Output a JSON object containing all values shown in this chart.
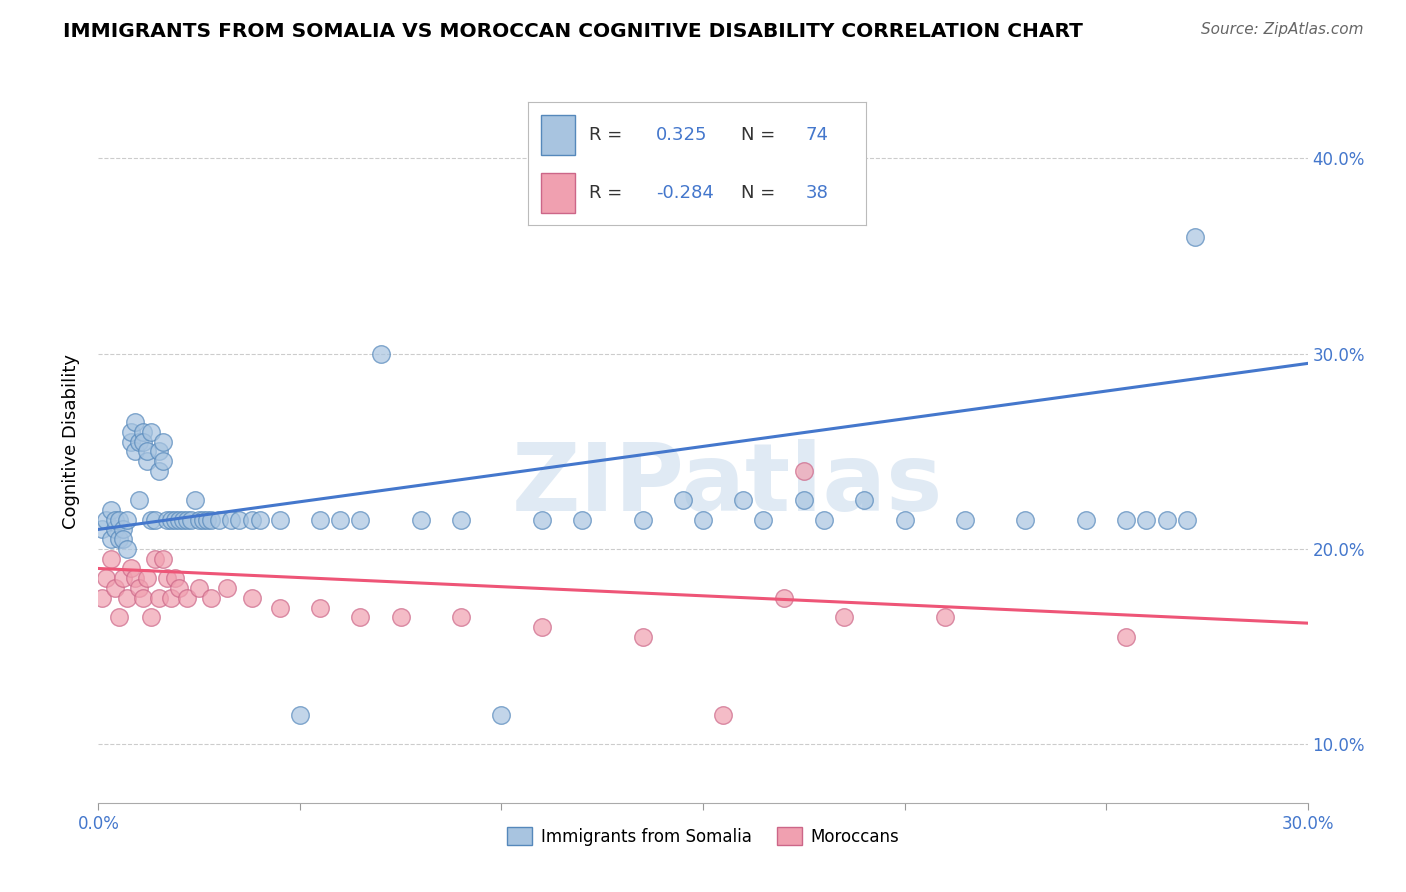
{
  "title": "IMMIGRANTS FROM SOMALIA VS MOROCCAN COGNITIVE DISABILITY CORRELATION CHART",
  "source": "Source: ZipAtlas.com",
  "ylabel": "Cognitive Disability",
  "xlim": [
    0.0,
    0.3
  ],
  "ylim": [
    0.07,
    0.44
  ],
  "xticks": [
    0.0,
    0.05,
    0.1,
    0.15,
    0.2,
    0.25,
    0.3
  ],
  "yticks": [
    0.1,
    0.2,
    0.3,
    0.4
  ],
  "ytick_labels": [
    "10.0%",
    "20.0%",
    "30.0%",
    "40.0%"
  ],
  "xtick_labels_show": [
    "0.0%",
    "30.0%"
  ],
  "blue_R": 0.325,
  "blue_N": 74,
  "pink_R": -0.284,
  "pink_N": 38,
  "blue_scatter_color": "#A8C4E0",
  "blue_edge_color": "#5588BB",
  "pink_scatter_color": "#F0A0B0",
  "pink_edge_color": "#CC6688",
  "blue_line_color": "#4477CC",
  "pink_line_color": "#EE5577",
  "legend_label_blue": "Immigrants from Somalia",
  "legend_label_pink": "Moroccans",
  "watermark": "ZIPatlas",
  "blue_line_start_y": 0.21,
  "blue_line_end_y": 0.295,
  "pink_line_start_y": 0.19,
  "pink_line_end_y": 0.162,
  "blue_x": [
    0.001,
    0.002,
    0.003,
    0.003,
    0.004,
    0.004,
    0.005,
    0.005,
    0.006,
    0.006,
    0.007,
    0.007,
    0.008,
    0.008,
    0.009,
    0.009,
    0.01,
    0.01,
    0.011,
    0.011,
    0.012,
    0.012,
    0.013,
    0.013,
    0.014,
    0.015,
    0.015,
    0.016,
    0.016,
    0.017,
    0.018,
    0.019,
    0.02,
    0.021,
    0.022,
    0.023,
    0.024,
    0.025,
    0.026,
    0.027,
    0.028,
    0.03,
    0.033,
    0.035,
    0.038,
    0.04,
    0.045,
    0.05,
    0.055,
    0.06,
    0.065,
    0.07,
    0.08,
    0.09,
    0.1,
    0.11,
    0.12,
    0.135,
    0.15,
    0.165,
    0.18,
    0.2,
    0.215,
    0.23,
    0.245,
    0.255,
    0.26,
    0.265,
    0.27,
    0.272,
    0.145,
    0.16,
    0.175,
    0.19
  ],
  "blue_y": [
    0.21,
    0.215,
    0.205,
    0.22,
    0.21,
    0.215,
    0.205,
    0.215,
    0.21,
    0.205,
    0.215,
    0.2,
    0.255,
    0.26,
    0.265,
    0.25,
    0.255,
    0.225,
    0.26,
    0.255,
    0.245,
    0.25,
    0.26,
    0.215,
    0.215,
    0.25,
    0.24,
    0.255,
    0.245,
    0.215,
    0.215,
    0.215,
    0.215,
    0.215,
    0.215,
    0.215,
    0.225,
    0.215,
    0.215,
    0.215,
    0.215,
    0.215,
    0.215,
    0.215,
    0.215,
    0.215,
    0.215,
    0.115,
    0.215,
    0.215,
    0.215,
    0.3,
    0.215,
    0.215,
    0.115,
    0.215,
    0.215,
    0.215,
    0.215,
    0.215,
    0.215,
    0.215,
    0.215,
    0.215,
    0.215,
    0.215,
    0.215,
    0.215,
    0.215,
    0.36,
    0.225,
    0.225,
    0.225,
    0.225
  ],
  "pink_x": [
    0.001,
    0.002,
    0.003,
    0.004,
    0.005,
    0.006,
    0.007,
    0.008,
    0.009,
    0.01,
    0.011,
    0.012,
    0.013,
    0.014,
    0.015,
    0.016,
    0.017,
    0.018,
    0.019,
    0.02,
    0.022,
    0.025,
    0.028,
    0.032,
    0.038,
    0.045,
    0.055,
    0.065,
    0.075,
    0.09,
    0.11,
    0.135,
    0.155,
    0.17,
    0.185,
    0.21,
    0.175,
    0.255
  ],
  "pink_y": [
    0.175,
    0.185,
    0.195,
    0.18,
    0.165,
    0.185,
    0.175,
    0.19,
    0.185,
    0.18,
    0.175,
    0.185,
    0.165,
    0.195,
    0.175,
    0.195,
    0.185,
    0.175,
    0.185,
    0.18,
    0.175,
    0.18,
    0.175,
    0.18,
    0.175,
    0.17,
    0.17,
    0.165,
    0.165,
    0.165,
    0.16,
    0.155,
    0.115,
    0.175,
    0.165,
    0.165,
    0.24,
    0.155
  ]
}
